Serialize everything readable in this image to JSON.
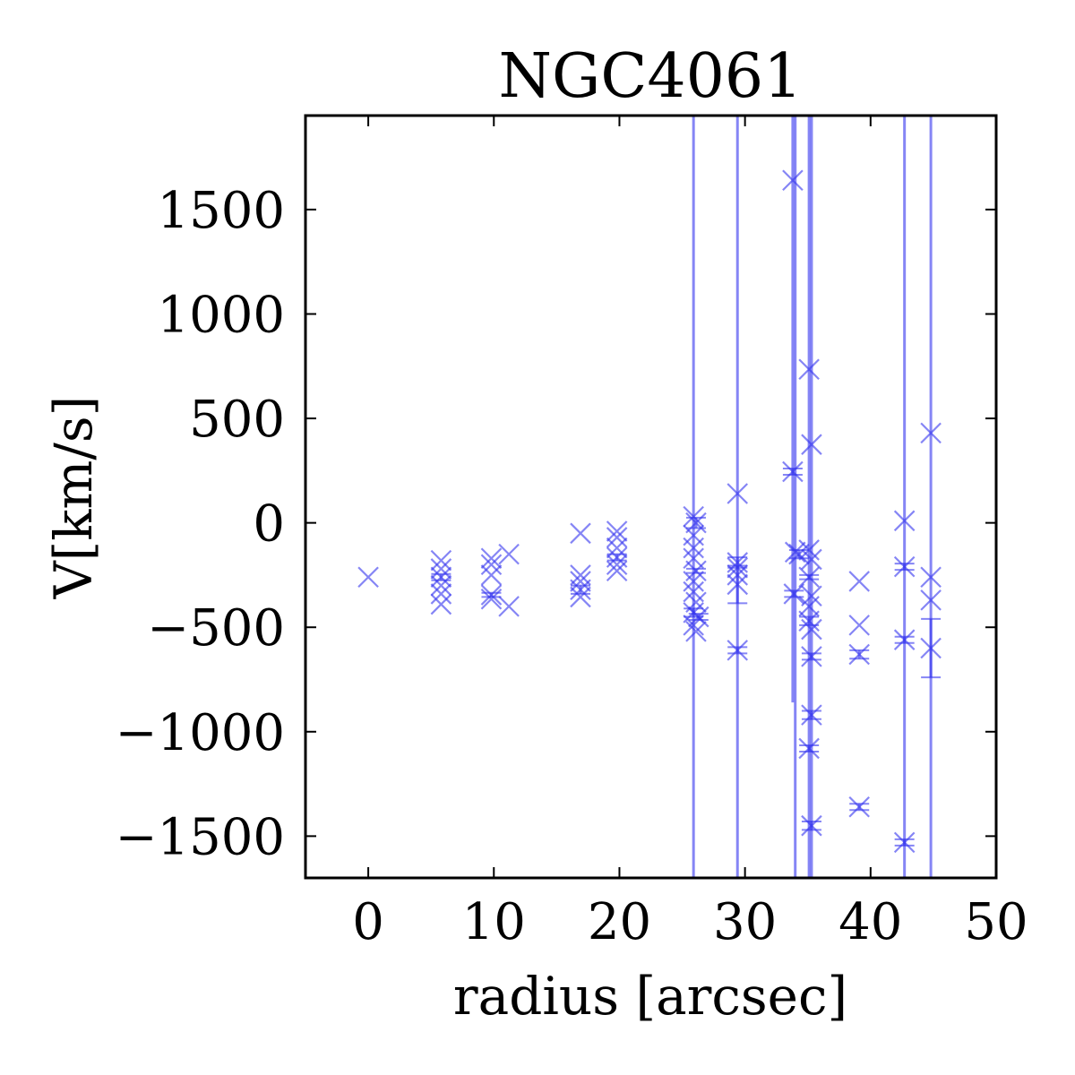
{
  "chart_data": {
    "type": "scatter",
    "title": "NGC4061",
    "xlabel": "radius [arcsec]",
    "ylabel": "V[km/s]",
    "xlim": [
      -5,
      50
    ],
    "ylim": [
      -1700,
      1950
    ],
    "xticks": [
      0,
      10,
      20,
      30,
      40,
      50
    ],
    "yticks": [
      -1500,
      -1000,
      -500,
      0,
      500,
      1000,
      1500
    ],
    "grid": false,
    "marker": "x",
    "color": "#3333ee",
    "points": [
      {
        "x": 0,
        "y": -260,
        "err": 0
      },
      {
        "x": 5.8,
        "y": -180,
        "err": 0
      },
      {
        "x": 5.8,
        "y": -220,
        "err": 0
      },
      {
        "x": 5.8,
        "y": -260,
        "err": 15
      },
      {
        "x": 5.8,
        "y": -300,
        "err": 0
      },
      {
        "x": 5.8,
        "y": -340,
        "err": 0
      },
      {
        "x": 5.8,
        "y": -390,
        "err": 0
      },
      {
        "x": 9.8,
        "y": -170,
        "err": 0
      },
      {
        "x": 9.8,
        "y": -200,
        "err": 0
      },
      {
        "x": 9.8,
        "y": -250,
        "err": 0
      },
      {
        "x": 9.8,
        "y": -345,
        "err": 10
      },
      {
        "x": 9.8,
        "y": -365,
        "err": 0
      },
      {
        "x": 11.2,
        "y": -150,
        "err": 0
      },
      {
        "x": 11.2,
        "y": -400,
        "err": 0
      },
      {
        "x": 16.9,
        "y": -50,
        "err": 0
      },
      {
        "x": 16.9,
        "y": -250,
        "err": 0
      },
      {
        "x": 16.9,
        "y": -280,
        "err": 0
      },
      {
        "x": 16.9,
        "y": -320,
        "err": 20
      },
      {
        "x": 16.9,
        "y": -355,
        "err": 0
      },
      {
        "x": 19.8,
        "y": -40,
        "err": 0
      },
      {
        "x": 19.8,
        "y": -70,
        "err": 0
      },
      {
        "x": 19.8,
        "y": -120,
        "err": 0
      },
      {
        "x": 19.8,
        "y": -165,
        "err": 15
      },
      {
        "x": 19.8,
        "y": -200,
        "err": 0
      },
      {
        "x": 19.8,
        "y": -230,
        "err": 0
      },
      {
        "x": 25.9,
        "y": 30,
        "err": 2500
      },
      {
        "x": 26.1,
        "y": 0,
        "err": 25
      },
      {
        "x": 25.9,
        "y": -60,
        "err": 0
      },
      {
        "x": 25.9,
        "y": -120,
        "err": 0
      },
      {
        "x": 25.9,
        "y": -170,
        "err": 0
      },
      {
        "x": 26.1,
        "y": -230,
        "err": 10
      },
      {
        "x": 25.9,
        "y": -280,
        "err": 0
      },
      {
        "x": 25.9,
        "y": -330,
        "err": 0
      },
      {
        "x": 26.1,
        "y": -380,
        "err": 0
      },
      {
        "x": 25.9,
        "y": -430,
        "err": 20
      },
      {
        "x": 26.3,
        "y": -450,
        "err": 15
      },
      {
        "x": 25.9,
        "y": -490,
        "err": 0
      },
      {
        "x": 26.1,
        "y": -520,
        "err": 0
      },
      {
        "x": 29.4,
        "y": 140,
        "err": 2500
      },
      {
        "x": 29.4,
        "y": -190,
        "err": 25
      },
      {
        "x": 29.4,
        "y": -215,
        "err": 0
      },
      {
        "x": 29.4,
        "y": -250,
        "err": 0
      },
      {
        "x": 29.4,
        "y": -295,
        "err": 90
      },
      {
        "x": 29.4,
        "y": -610,
        "err": 15
      },
      {
        "x": 33.8,
        "y": 1640,
        "err": 2500
      },
      {
        "x": 33.8,
        "y": 245,
        "err": 15
      },
      {
        "x": 34.0,
        "y": -140,
        "err": 2500
      },
      {
        "x": 34.3,
        "y": -150,
        "err": 20
      },
      {
        "x": 33.9,
        "y": -340,
        "err": 15
      },
      {
        "x": 35.1,
        "y": 735,
        "err": 2500
      },
      {
        "x": 35.3,
        "y": 375,
        "err": 2500
      },
      {
        "x": 35.1,
        "y": -130,
        "err": 0
      },
      {
        "x": 35.3,
        "y": -175,
        "err": 0
      },
      {
        "x": 35.1,
        "y": -260,
        "err": 10
      },
      {
        "x": 35.3,
        "y": -350,
        "err": 0
      },
      {
        "x": 35.1,
        "y": -400,
        "err": 0
      },
      {
        "x": 35.1,
        "y": -470,
        "err": 20
      },
      {
        "x": 35.3,
        "y": -510,
        "err": 0
      },
      {
        "x": 35.3,
        "y": -640,
        "err": 15
      },
      {
        "x": 35.3,
        "y": -920,
        "err": 20
      },
      {
        "x": 35.1,
        "y": -1080,
        "err": 15
      },
      {
        "x": 35.3,
        "y": -1450,
        "err": 20
      },
      {
        "x": 39.1,
        "y": -280,
        "err": 0
      },
      {
        "x": 39.1,
        "y": -490,
        "err": 0
      },
      {
        "x": 39.1,
        "y": -630,
        "err": 20
      },
      {
        "x": 39.1,
        "y": -1360,
        "err": 15
      },
      {
        "x": 42.7,
        "y": 10,
        "err": 2500
      },
      {
        "x": 42.7,
        "y": -210,
        "err": 15
      },
      {
        "x": 42.7,
        "y": -560,
        "err": 15
      },
      {
        "x": 42.7,
        "y": -1530,
        "err": 15
      },
      {
        "x": 44.8,
        "y": 430,
        "err": 2500
      },
      {
        "x": 44.8,
        "y": -260,
        "err": 0
      },
      {
        "x": 44.8,
        "y": -370,
        "err": 0
      },
      {
        "x": 44.8,
        "y": -600,
        "err": 140
      }
    ]
  }
}
